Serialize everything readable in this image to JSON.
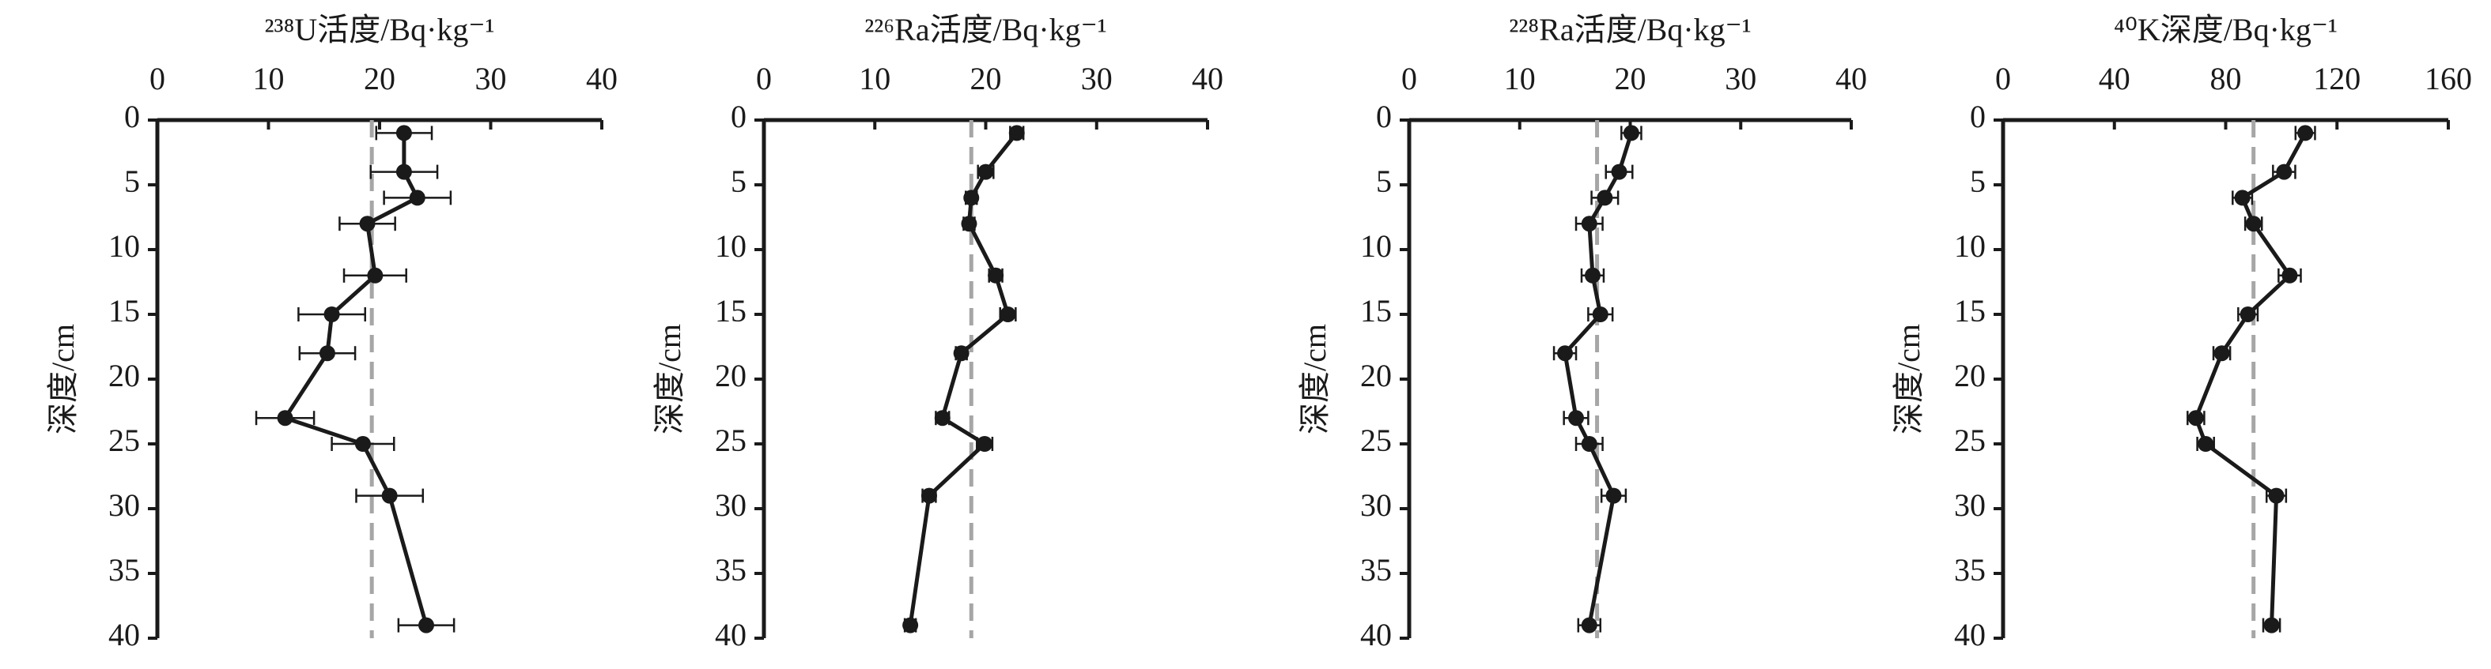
{
  "chart_data": [
    {
      "type": "line",
      "title": "²³⁸U活度/Bq·kg⁻¹",
      "ylabel": "深度/cm",
      "y": [
        1,
        4,
        6,
        8,
        12,
        15,
        18,
        23,
        25,
        29,
        39
      ],
      "values": [
        22.2,
        22.2,
        23.4,
        18.9,
        19.6,
        15.7,
        15.3,
        11.5,
        18.5,
        20.9,
        24.2
      ],
      "errors": [
        2.5,
        3,
        3,
        2.5,
        2.8,
        3,
        2.5,
        2.6,
        2.8,
        3,
        2.5
      ],
      "mean": 19.3,
      "xlim": [
        0,
        40
      ],
      "xticks": [
        0,
        10,
        20,
        30,
        40
      ],
      "ylim": [
        0,
        40
      ],
      "yticks": [
        0,
        5,
        10,
        15,
        20,
        25,
        30,
        35,
        40
      ],
      "color": "#1a1a1a",
      "mean_color": "#a6a6a6"
    },
    {
      "type": "line",
      "title": "²²⁶Ra活度/Bq·kg⁻¹",
      "ylabel": "深度/cm",
      "y": [
        1,
        4,
        6,
        8,
        12,
        15,
        18,
        23,
        25,
        29,
        39
      ],
      "values": [
        22.8,
        20.0,
        18.7,
        18.5,
        20.9,
        22.0,
        17.8,
        16.1,
        19.9,
        14.9,
        13.2
      ],
      "errors": [
        0.6,
        0.7,
        0.5,
        0.5,
        0.6,
        0.7,
        0.5,
        0.6,
        0.7,
        0.6,
        0.5
      ],
      "mean": 18.7,
      "xlim": [
        0,
        40
      ],
      "xticks": [
        0,
        10,
        20,
        30,
        40
      ],
      "ylim": [
        0,
        40
      ],
      "yticks": [
        0,
        5,
        10,
        15,
        20,
        25,
        30,
        35,
        40
      ],
      "color": "#1a1a1a",
      "mean_color": "#a6a6a6"
    },
    {
      "type": "line",
      "title": "²²⁸Ra活度/Bq·kg⁻¹",
      "ylabel": "深度/cm",
      "y": [
        1,
        4,
        6,
        8,
        12,
        15,
        18,
        23,
        25,
        29,
        39
      ],
      "values": [
        20.1,
        19.0,
        17.7,
        16.3,
        16.6,
        17.3,
        14.1,
        15.1,
        16.3,
        18.5,
        16.3
      ],
      "errors": [
        0.9,
        1.2,
        1.2,
        1.2,
        1.0,
        1.1,
        1.0,
        1.1,
        1.2,
        1.1,
        1.0
      ],
      "mean": 17.0,
      "xlim": [
        0,
        40
      ],
      "xticks": [
        0,
        10,
        20,
        30,
        40
      ],
      "ylim": [
        0,
        40
      ],
      "yticks": [
        0,
        5,
        10,
        15,
        20,
        25,
        30,
        35,
        40
      ],
      "color": "#1a1a1a",
      "mean_color": "#a6a6a6"
    },
    {
      "type": "line",
      "title": "⁴⁰K深度/Bq·kg⁻¹",
      "ylabel": "深度/cm",
      "y": [
        1,
        4,
        6,
        8,
        12,
        15,
        18,
        23,
        25,
        29,
        39
      ],
      "values": [
        108.6,
        101,
        86,
        90,
        103,
        88,
        78.6,
        69.3,
        72.8,
        98.2,
        96.5
      ],
      "errors": [
        3.5,
        4,
        3.5,
        3,
        4,
        3.5,
        3,
        3,
        3,
        3.5,
        3
      ],
      "mean": 90,
      "xlim": [
        0,
        160
      ],
      "xticks": [
        0,
        40,
        80,
        120,
        160
      ],
      "ylim": [
        0,
        40
      ],
      "yticks": [
        0,
        5,
        10,
        15,
        20,
        25,
        30,
        35,
        40
      ],
      "color": "#1a1a1a",
      "mean_color": "#a6a6a6"
    }
  ]
}
